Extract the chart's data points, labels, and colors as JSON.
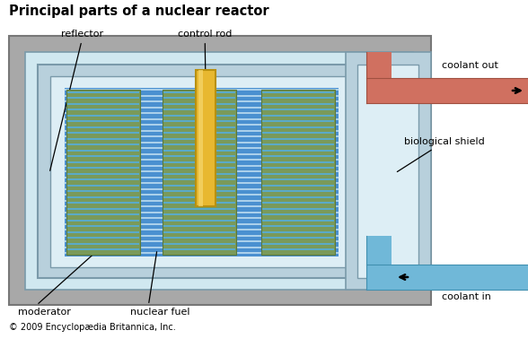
{
  "title": "Principal parts of a nuclear reactor",
  "copyright": "© 2009 Encyclopædia Britannica, Inc.",
  "colors": {
    "outer_shield": "#a8a8a8",
    "reflector_light": "#d0e8f0",
    "reflector_mid": "#b8d0dc",
    "inner_light": "#ddeef5",
    "fuel_green": "#7a9a5a",
    "fuel_stripe": "#5aabcc",
    "mod_blue": "#4a90d0",
    "mod_stripe": "#c8e4f4",
    "control_rod_yellow": "#e8b830",
    "control_rod_dark": "#b89010",
    "control_rod_light": "#f5d870",
    "coolant_out": "#d07060",
    "coolant_out_dark": "#a05040",
    "coolant_in": "#70b8d8",
    "coolant_in_dark": "#4090b0",
    "pipe_gray": "#999999",
    "border_dark": "#777777",
    "border_blue": "#7a9aaa"
  },
  "labels": {
    "reflector": "reflector",
    "control_rod": "control rod",
    "biological_shield": "biological shield",
    "coolant_out": "coolant out",
    "coolant_in": "coolant in",
    "moderator": "moderator",
    "nuclear_fuel": "nuclear fuel"
  }
}
